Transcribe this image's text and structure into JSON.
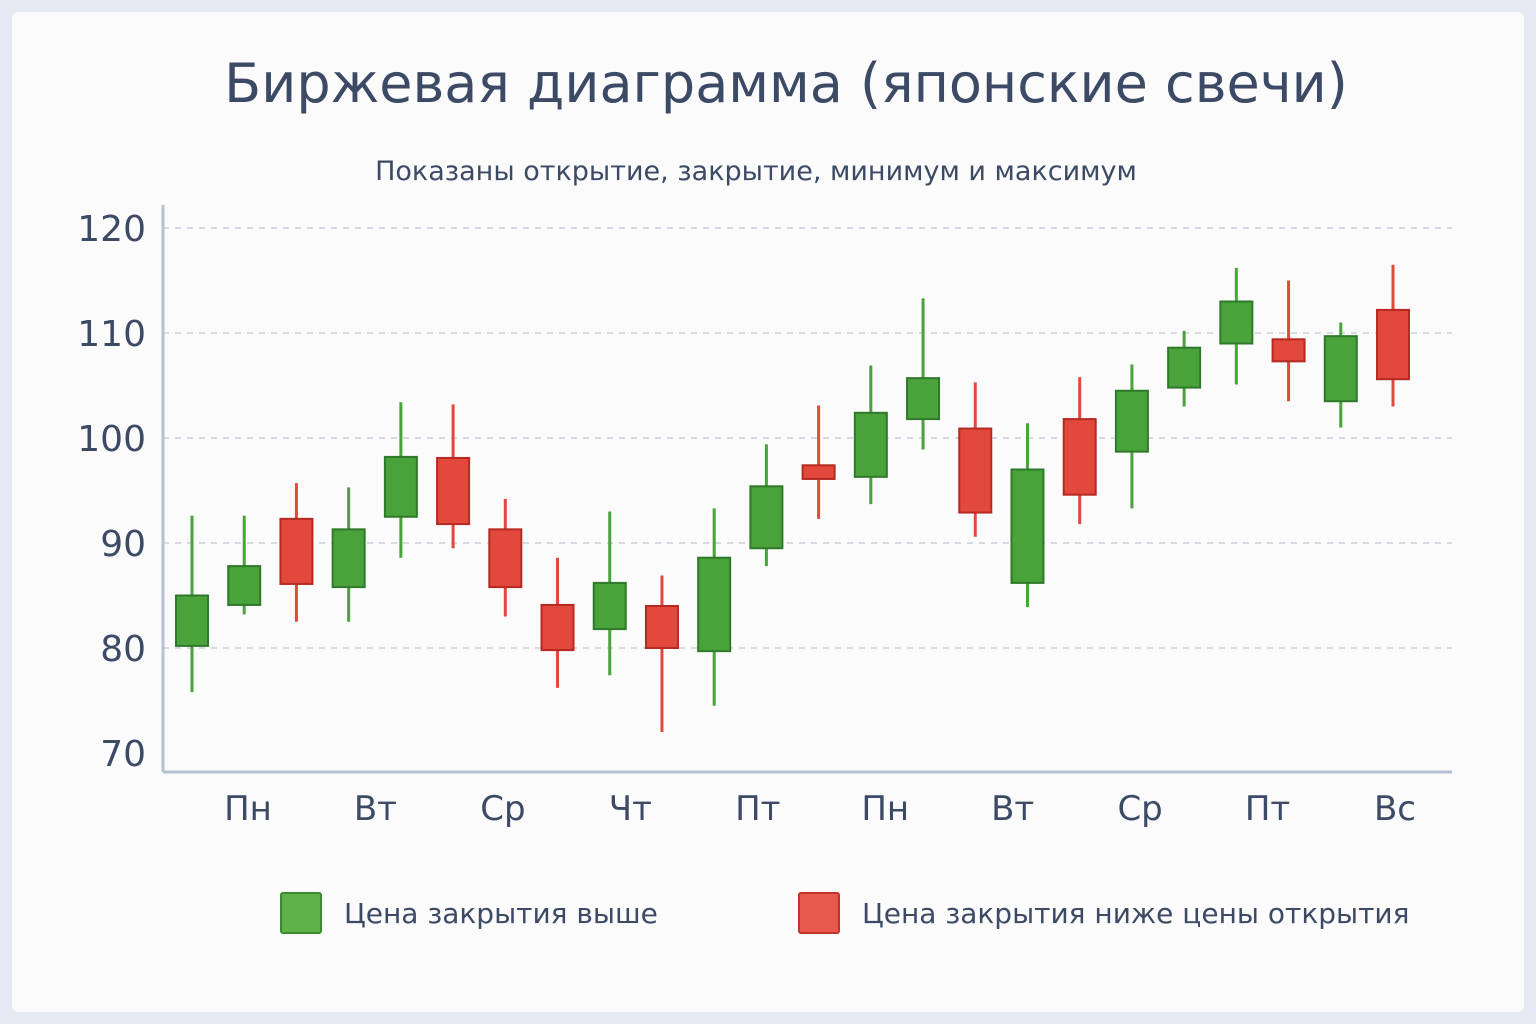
{
  "title": "Биржевая диаграмма (японские свечи)",
  "subtitle": "Показаны открытие, закрытие, минимум и максимум",
  "legend": {
    "up": "Цена закрытия выше",
    "down": "Цена закрытия ниже цены открытия"
  },
  "colors": {
    "up": "#4aa23a",
    "up_border": "#2f7a2a",
    "down": "#e2483c",
    "down_border": "#b62a22",
    "text": "#3c4a66"
  },
  "chart_data": {
    "type": "candlestick",
    "title": "Биржевая диаграмма (японские свечи)",
    "subtitle": "Показаны открытие, закрытие, минимум и максимум",
    "ylim": [
      70,
      120
    ],
    "yticks": [
      70,
      80,
      90,
      100,
      110,
      120
    ],
    "grid": true,
    "legend_position": "bottom",
    "x_tick_labels": [
      "Пн",
      "Вт",
      "Ср",
      "Чт",
      "Пт",
      "Пн",
      "Вт",
      "Ср",
      "Пт",
      "Вс"
    ],
    "candles": [
      {
        "open": 80.2,
        "close": 85.0,
        "high": 92.6,
        "low": 75.8
      },
      {
        "open": 84.1,
        "close": 87.8,
        "high": 92.6,
        "low": 83.2
      },
      {
        "open": 92.3,
        "close": 86.1,
        "high": 95.7,
        "low": 82.5
      },
      {
        "open": 85.8,
        "close": 91.3,
        "high": 95.3,
        "low": 82.5
      },
      {
        "open": 92.5,
        "close": 98.2,
        "high": 103.4,
        "low": 88.6
      },
      {
        "open": 98.1,
        "close": 91.8,
        "high": 103.2,
        "low": 89.5
      },
      {
        "open": 91.3,
        "close": 85.8,
        "high": 94.2,
        "low": 83.0
      },
      {
        "open": 84.1,
        "close": 79.8,
        "high": 88.6,
        "low": 76.2
      },
      {
        "open": 81.8,
        "close": 86.2,
        "high": 93.0,
        "low": 77.4
      },
      {
        "open": 84.0,
        "close": 80.0,
        "high": 86.9,
        "low": 72.0
      },
      {
        "open": 79.7,
        "close": 88.6,
        "high": 93.3,
        "low": 74.5
      },
      {
        "open": 89.5,
        "close": 95.4,
        "high": 99.4,
        "low": 87.8
      },
      {
        "open": 97.4,
        "close": 96.1,
        "high": 103.1,
        "low": 92.3
      },
      {
        "open": 96.3,
        "close": 102.4,
        "high": 106.9,
        "low": 93.7
      },
      {
        "open": 101.8,
        "close": 105.7,
        "high": 113.3,
        "low": 98.9
      },
      {
        "open": 100.9,
        "close": 92.9,
        "high": 105.3,
        "low": 90.6
      },
      {
        "open": 86.2,
        "close": 97.0,
        "high": 101.4,
        "low": 83.9
      },
      {
        "open": 101.8,
        "close": 94.6,
        "high": 105.8,
        "low": 91.8
      },
      {
        "open": 98.7,
        "close": 104.5,
        "high": 107.0,
        "low": 93.3
      },
      {
        "open": 104.8,
        "close": 108.6,
        "high": 110.2,
        "low": 103.0
      },
      {
        "open": 109.0,
        "close": 113.0,
        "high": 116.2,
        "low": 105.1
      },
      {
        "open": 109.4,
        "close": 107.3,
        "high": 115.0,
        "low": 103.5
      },
      {
        "open": 103.5,
        "close": 109.7,
        "high": 111.0,
        "low": 101.0
      },
      {
        "open": 112.2,
        "close": 105.6,
        "high": 116.5,
        "low": 103.0
      }
    ]
  }
}
